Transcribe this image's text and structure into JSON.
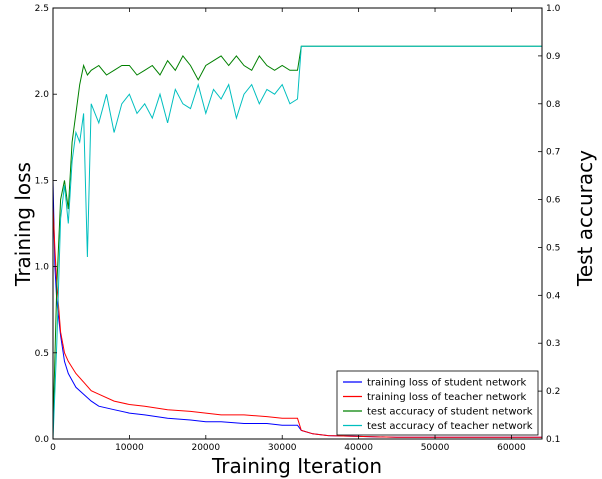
{
  "chart_data": {
    "type": "line",
    "xlabel": "Training Iteration",
    "ylabel": "Training loss",
    "y2label": "Test accuracy",
    "xlim": [
      0,
      64000
    ],
    "ylim": [
      0,
      2.5
    ],
    "y2lim": [
      0.1,
      1.0
    ],
    "xticks": [
      "0",
      "10000",
      "20000",
      "30000",
      "40000",
      "50000",
      "60000"
    ],
    "yticks": [
      "0.0",
      "0.5",
      "1.0",
      "1.5",
      "2.0",
      "2.5"
    ],
    "y2ticks": [
      "0.1",
      "0.2",
      "0.3",
      "0.4",
      "0.5",
      "0.6",
      "0.7",
      "0.8",
      "0.9",
      "1.0"
    ],
    "legend_position": "lower-right",
    "series": [
      {
        "name": "training loss of student network",
        "axis": "left",
        "color": "#0000ff",
        "x": [
          0,
          250,
          500,
          1000,
          1500,
          2000,
          3000,
          4000,
          5000,
          6000,
          8000,
          10000,
          12000,
          15000,
          18000,
          20000,
          22000,
          25000,
          28000,
          30000,
          32000,
          32500,
          34000,
          36000,
          40000,
          45000,
          50000,
          55000,
          60000,
          64000
        ],
        "y": [
          1.5,
          1.0,
          0.8,
          0.6,
          0.45,
          0.38,
          0.3,
          0.26,
          0.22,
          0.19,
          0.17,
          0.15,
          0.14,
          0.12,
          0.11,
          0.1,
          0.1,
          0.09,
          0.09,
          0.08,
          0.08,
          0.05,
          0.03,
          0.02,
          0.015,
          0.01,
          0.01,
          0.01,
          0.01,
          0.01
        ]
      },
      {
        "name": "training loss of teacher network",
        "axis": "left",
        "color": "#ff0000",
        "x": [
          0,
          250,
          500,
          1000,
          1500,
          2000,
          3000,
          4000,
          5000,
          6000,
          8000,
          10000,
          12000,
          15000,
          18000,
          20000,
          22000,
          25000,
          28000,
          30000,
          32000,
          32500,
          34000,
          36000,
          40000,
          45000,
          50000,
          55000,
          60000,
          64000
        ],
        "y": [
          1.35,
          1.1,
          0.9,
          0.62,
          0.5,
          0.45,
          0.38,
          0.33,
          0.28,
          0.26,
          0.22,
          0.2,
          0.19,
          0.17,
          0.16,
          0.15,
          0.14,
          0.14,
          0.13,
          0.12,
          0.12,
          0.05,
          0.03,
          0.02,
          0.015,
          0.01,
          0.01,
          0.01,
          0.01,
          0.01
        ]
      },
      {
        "name": "test accuracy of student network",
        "axis": "right",
        "color": "#008000",
        "x": [
          0,
          500,
          1000,
          1500,
          2000,
          2500,
          3000,
          3500,
          4000,
          4500,
          5000,
          6000,
          7000,
          8000,
          9000,
          10000,
          11000,
          12000,
          13000,
          14000,
          15000,
          16000,
          17000,
          18000,
          19000,
          20000,
          21000,
          22000,
          23000,
          24000,
          25000,
          26000,
          27000,
          28000,
          29000,
          30000,
          31000,
          32000,
          32500,
          34000,
          36000,
          40000,
          45000,
          50000,
          55000,
          60000,
          64000
        ],
        "y": [
          0.12,
          0.42,
          0.6,
          0.64,
          0.58,
          0.72,
          0.78,
          0.84,
          0.88,
          0.86,
          0.87,
          0.88,
          0.86,
          0.87,
          0.88,
          0.88,
          0.86,
          0.87,
          0.88,
          0.86,
          0.89,
          0.87,
          0.9,
          0.88,
          0.85,
          0.88,
          0.89,
          0.9,
          0.88,
          0.9,
          0.88,
          0.87,
          0.9,
          0.88,
          0.87,
          0.88,
          0.87,
          0.87,
          0.92,
          0.92,
          0.92,
          0.92,
          0.92,
          0.92,
          0.92,
          0.92,
          0.92
        ]
      },
      {
        "name": "test accuracy of teacher network",
        "axis": "right",
        "color": "#00bfbf",
        "x": [
          0,
          500,
          1000,
          1500,
          2000,
          2500,
          3000,
          3500,
          4000,
          4500,
          5000,
          5500,
          6000,
          7000,
          8000,
          9000,
          10000,
          11000,
          12000,
          13000,
          14000,
          15000,
          16000,
          17000,
          18000,
          19000,
          20000,
          21000,
          22000,
          23000,
          24000,
          25000,
          26000,
          27000,
          28000,
          29000,
          30000,
          31000,
          32000,
          32500,
          34000,
          36000,
          40000,
          45000,
          50000,
          55000,
          60000,
          64000
        ],
        "y": [
          0.1,
          0.3,
          0.56,
          0.63,
          0.55,
          0.68,
          0.74,
          0.72,
          0.78,
          0.48,
          0.8,
          0.78,
          0.76,
          0.82,
          0.74,
          0.8,
          0.82,
          0.78,
          0.8,
          0.77,
          0.82,
          0.76,
          0.83,
          0.8,
          0.79,
          0.84,
          0.78,
          0.83,
          0.81,
          0.84,
          0.77,
          0.82,
          0.84,
          0.8,
          0.83,
          0.82,
          0.84,
          0.8,
          0.81,
          0.92,
          0.92,
          0.92,
          0.92,
          0.92,
          0.92,
          0.92,
          0.92,
          0.92
        ]
      }
    ]
  }
}
